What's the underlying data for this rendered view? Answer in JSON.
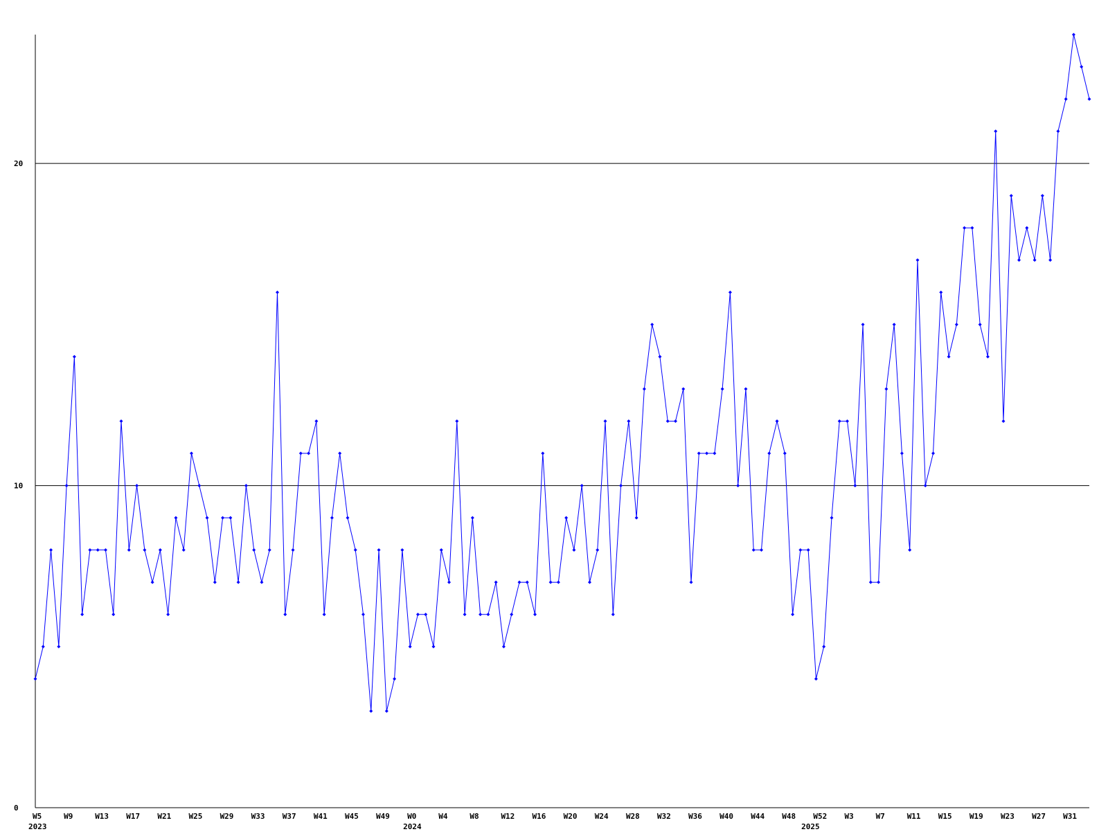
{
  "chart_data": {
    "type": "line",
    "categories": [
      "W5",
      null,
      null,
      null,
      "W9",
      null,
      null,
      null,
      "W13",
      null,
      null,
      null,
      "W17",
      null,
      null,
      null,
      "W21",
      null,
      null,
      null,
      "W25",
      null,
      null,
      null,
      "W29",
      null,
      null,
      null,
      "W33",
      null,
      null,
      null,
      "W37",
      null,
      null,
      null,
      "W41",
      null,
      null,
      null,
      "W45",
      null,
      null,
      null,
      "W49",
      null,
      null,
      null,
      "W0",
      null,
      null,
      null,
      "W4",
      null,
      null,
      null,
      "W8",
      null,
      null,
      null,
      "W12",
      null,
      null,
      null,
      "W16",
      null,
      null,
      null,
      "W20",
      null,
      null,
      null,
      "W24",
      null,
      null,
      null,
      "W28",
      null,
      null,
      null,
      "W32",
      null,
      null,
      null,
      "W36",
      null,
      null,
      null,
      "W40",
      null,
      null,
      null,
      "W44",
      null,
      null,
      null,
      "W48",
      null,
      null,
      null,
      "W52",
      null,
      null,
      null,
      "W3",
      null,
      null,
      null,
      "W7",
      null,
      null,
      null,
      "W11",
      null,
      null,
      null,
      "W15",
      null,
      null,
      null,
      "W19",
      null,
      null,
      null,
      "W23",
      null,
      null,
      null,
      "W27",
      null,
      null,
      null,
      "W31",
      null,
      null,
      null
    ],
    "category_years": [
      "2023",
      null,
      null,
      null,
      null,
      null,
      null,
      null,
      null,
      null,
      null,
      null,
      null,
      null,
      null,
      null,
      null,
      null,
      null,
      null,
      null,
      null,
      null,
      null,
      null,
      null,
      null,
      null,
      null,
      null,
      null,
      null,
      null,
      null,
      null,
      null,
      null,
      null,
      null,
      null,
      null,
      null,
      null,
      null,
      null,
      null,
      null,
      null,
      "2024",
      null,
      null,
      null,
      null,
      null,
      null,
      null,
      null,
      null,
      null,
      null,
      null,
      null,
      null,
      null,
      null,
      null,
      null,
      null,
      null,
      null,
      null,
      null,
      null,
      null,
      null,
      null,
      null,
      null,
      null,
      null,
      null,
      null,
      null,
      null,
      null,
      null,
      null,
      null,
      null,
      null,
      null,
      null,
      null,
      null,
      null,
      null,
      null,
      null,
      null,
      "2025",
      null,
      null,
      null,
      null,
      null,
      null,
      null,
      null,
      null,
      null,
      null,
      null,
      null,
      null,
      null,
      null,
      null,
      null,
      null,
      null,
      null,
      null,
      null,
      null,
      null,
      null,
      null,
      null,
      null,
      null,
      null,
      null,
      null,
      null
    ],
    "values": [
      4,
      5,
      8,
      5,
      10,
      14,
      6,
      8,
      8,
      8,
      6,
      12,
      8,
      10,
      8,
      7,
      8,
      6,
      9,
      8,
      11,
      10,
      9,
      7,
      9,
      9,
      7,
      10,
      8,
      7,
      8,
      16,
      6,
      8,
      11,
      11,
      12,
      6,
      9,
      11,
      9,
      8,
      6,
      3,
      8,
      3,
      4,
      8,
      5,
      6,
      6,
      5,
      8,
      7,
      12,
      6,
      9,
      6,
      6,
      7,
      5,
      6,
      7,
      7,
      6,
      11,
      7,
      7,
      9,
      8,
      10,
      7,
      8,
      12,
      6,
      10,
      12,
      9,
      13,
      15,
      14,
      12,
      12,
      13,
      7,
      11,
      11,
      11,
      13,
      16,
      10,
      13,
      8,
      8,
      11,
      12,
      11,
      6,
      8,
      8,
      4,
      5,
      9,
      12,
      12,
      10,
      15,
      7,
      7,
      13,
      15,
      11,
      8,
      17,
      10,
      11,
      16,
      14,
      15,
      18,
      18,
      15,
      14,
      21,
      12,
      19,
      17,
      18,
      17,
      19,
      17,
      21,
      22,
      24,
      23,
      22
    ],
    "color": "#0000ff",
    "ylim": [
      0,
      24
    ],
    "yticks": [
      0,
      10,
      20
    ],
    "grid": true
  }
}
